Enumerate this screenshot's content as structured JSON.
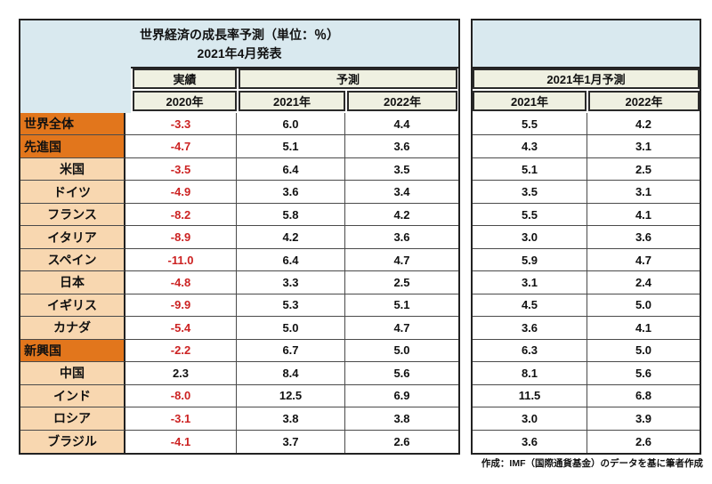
{
  "left_table": {
    "title_line1": "世界経済の成長率予測（単位：％）",
    "title_line2": "2021年4月発表",
    "header_actual": "実績",
    "header_forecast": "予測",
    "col_2020": "2020年",
    "col_2021": "2021年",
    "col_2022": "2022年"
  },
  "right_table": {
    "header": "2021年1月予測",
    "col_2021": "2021年",
    "col_2022": "2022年"
  },
  "rows": [
    {
      "label": "世界全体",
      "type": "group",
      "v2020": "-3.3",
      "v2021": "6.0",
      "v2022": "4.4",
      "jan2021": "5.5",
      "jan2022": "4.2"
    },
    {
      "label": "先進国",
      "type": "group",
      "v2020": "-4.7",
      "v2021": "5.1",
      "v2022": "3.6",
      "jan2021": "4.3",
      "jan2022": "3.1"
    },
    {
      "label": "米国",
      "type": "country",
      "v2020": "-3.5",
      "v2021": "6.4",
      "v2022": "3.5",
      "jan2021": "5.1",
      "jan2022": "2.5"
    },
    {
      "label": "ドイツ",
      "type": "country",
      "v2020": "-4.9",
      "v2021": "3.6",
      "v2022": "3.4",
      "jan2021": "3.5",
      "jan2022": "3.1"
    },
    {
      "label": "フランス",
      "type": "country",
      "v2020": "-8.2",
      "v2021": "5.8",
      "v2022": "4.2",
      "jan2021": "5.5",
      "jan2022": "4.1"
    },
    {
      "label": "イタリア",
      "type": "country",
      "v2020": "-8.9",
      "v2021": "4.2",
      "v2022": "3.6",
      "jan2021": "3.0",
      "jan2022": "3.6"
    },
    {
      "label": "スペイン",
      "type": "country",
      "v2020": "-11.0",
      "v2021": "6.4",
      "v2022": "4.7",
      "jan2021": "5.9",
      "jan2022": "4.7"
    },
    {
      "label": "日本",
      "type": "country",
      "v2020": "-4.8",
      "v2021": "3.3",
      "v2022": "2.5",
      "jan2021": "3.1",
      "jan2022": "2.4"
    },
    {
      "label": "イギリス",
      "type": "country",
      "v2020": "-9.9",
      "v2021": "5.3",
      "v2022": "5.1",
      "jan2021": "4.5",
      "jan2022": "5.0"
    },
    {
      "label": "カナダ",
      "type": "country",
      "v2020": "-5.4",
      "v2021": "5.0",
      "v2022": "4.7",
      "jan2021": "3.6",
      "jan2022": "4.1"
    },
    {
      "label": "新興国",
      "type": "group",
      "v2020": "-2.2",
      "v2021": "6.7",
      "v2022": "5.0",
      "jan2021": "6.3",
      "jan2022": "5.0"
    },
    {
      "label": "中国",
      "type": "country",
      "v2020": "2.3",
      "v2021": "8.4",
      "v2022": "5.6",
      "jan2021": "8.1",
      "jan2022": "5.6"
    },
    {
      "label": "インド",
      "type": "country",
      "v2020": "-8.0",
      "v2021": "12.5",
      "v2022": "6.9",
      "jan2021": "11.5",
      "jan2022": "6.8"
    },
    {
      "label": "ロシア",
      "type": "country",
      "v2020": "-3.1",
      "v2021": "3.8",
      "v2022": "3.8",
      "jan2021": "3.0",
      "jan2022": "3.9"
    },
    {
      "label": "ブラジル",
      "type": "country",
      "v2020": "-4.1",
      "v2021": "3.7",
      "v2022": "2.6",
      "jan2021": "3.6",
      "jan2022": "2.6"
    }
  ],
  "footer": {
    "credit": "作成：IMF（国際通貨基金）のデータを基に筆者作成"
  },
  "colors": {
    "header_blue": "#d9e9ef",
    "header_beige": "#eff0e1",
    "group_orange": "#e2761c",
    "country_peach": "#f8d7b0",
    "negative_red": "#cc2222",
    "border_dark": "#222222",
    "border_light": "#4a4a4a"
  },
  "chart_data": {
    "type": "table",
    "title": "世界経済の成長率予測（単位：％） 2021年4月発表",
    "unit": "%",
    "column_groups": [
      "実績",
      "予測",
      "2021年1月予測"
    ],
    "columns": [
      "2020年（実績）",
      "2021年（予測）",
      "2022年（予測）",
      "2021年（2021年1月予測）",
      "2022年（2021年1月予測）"
    ],
    "rows": [
      {
        "label": "世界全体",
        "values": [
          -3.3,
          6.0,
          4.4,
          5.5,
          4.2
        ]
      },
      {
        "label": "先進国",
        "values": [
          -4.7,
          5.1,
          3.6,
          4.3,
          3.1
        ]
      },
      {
        "label": "米国",
        "values": [
          -3.5,
          6.4,
          3.5,
          5.1,
          2.5
        ]
      },
      {
        "label": "ドイツ",
        "values": [
          -4.9,
          3.6,
          3.4,
          3.5,
          3.1
        ]
      },
      {
        "label": "フランス",
        "values": [
          -8.2,
          5.8,
          4.2,
          5.5,
          4.1
        ]
      },
      {
        "label": "イタリア",
        "values": [
          -8.9,
          4.2,
          3.6,
          3.0,
          3.6
        ]
      },
      {
        "label": "スペイン",
        "values": [
          -11.0,
          6.4,
          4.7,
          5.9,
          4.7
        ]
      },
      {
        "label": "日本",
        "values": [
          -4.8,
          3.3,
          2.5,
          3.1,
          2.4
        ]
      },
      {
        "label": "イギリス",
        "values": [
          -9.9,
          5.3,
          5.1,
          4.5,
          5.0
        ]
      },
      {
        "label": "カナダ",
        "values": [
          -5.4,
          5.0,
          4.7,
          3.6,
          4.1
        ]
      },
      {
        "label": "新興国",
        "values": [
          -2.2,
          6.7,
          5.0,
          6.3,
          5.0
        ]
      },
      {
        "label": "中国",
        "values": [
          2.3,
          8.4,
          5.6,
          8.1,
          5.6
        ]
      },
      {
        "label": "インド",
        "values": [
          -8.0,
          12.5,
          6.9,
          11.5,
          6.8
        ]
      },
      {
        "label": "ロシア",
        "values": [
          -3.1,
          3.8,
          3.8,
          3.0,
          3.9
        ]
      },
      {
        "label": "ブラジル",
        "values": [
          -4.1,
          3.7,
          2.6,
          3.6,
          2.6
        ]
      }
    ],
    "source": "作成：IMF（国際通貨基金）のデータを基に筆者作成"
  }
}
